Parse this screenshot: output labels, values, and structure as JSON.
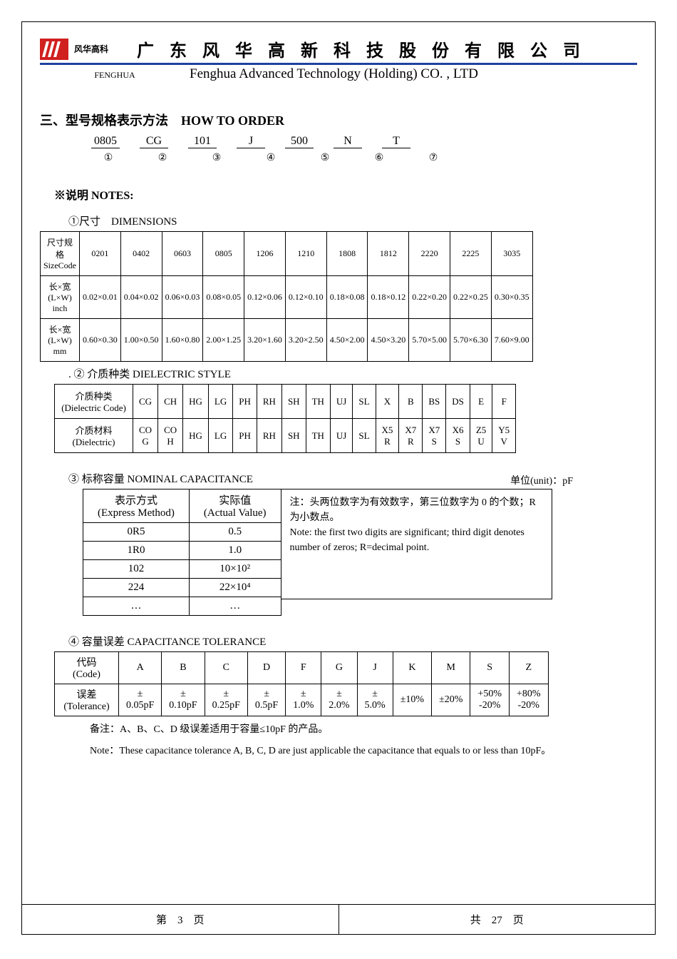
{
  "header": {
    "logo_text": "风华高科",
    "company_cn": "广 东 风 华 高 新 科 技 股 份 有 限 公 司",
    "sub_label": "FENGHUA",
    "company_en": "Fenghua Advanced Technology (Holding) CO. , LTD"
  },
  "section_order": {
    "title": "三、型号规格表示方法　HOW TO ORDER",
    "codes": [
      "0805",
      "CG",
      "101",
      "J",
      "500",
      "N",
      "T"
    ],
    "nums": [
      "①",
      "②",
      "③",
      "④",
      "⑤",
      "⑥",
      "⑦"
    ]
  },
  "notes_header": "※说明 NOTES:",
  "dim": {
    "label": "①尺寸　DIMENSIONS",
    "row_labels": [
      "尺寸规格\nSizeCode",
      "长×宽\n(L×W)\ninch",
      "长×宽\n(L×W)\nmm"
    ],
    "size_codes": [
      "0201",
      "0402",
      "0603",
      "0805",
      "1206",
      "1210",
      "1808",
      "1812",
      "2220",
      "2225",
      "3035"
    ],
    "inch": [
      "0.02×0.01",
      "0.04×0.02",
      "0.06×0.03",
      "0.08×0.05",
      "0.12×0.06",
      "0.12×0.10",
      "0.18×0.08",
      "0.18×0.12",
      "0.22×0.20",
      "0.22×0.25",
      "0.30×0.35"
    ],
    "mm": [
      "0.60×0.30",
      "1.00×0.50",
      "1.60×0.80",
      "2.00×1.25",
      "3.20×1.60",
      "3.20×2.50",
      "4.50×2.00",
      "4.50×3.20",
      "5.70×5.00",
      "5.70×6.30",
      "7.60×9.00"
    ]
  },
  "diel": {
    "label": ". ② 介质种类 DIELECTRIC STYLE",
    "row1_label": "介质种类\n(Dielectric Code)",
    "row2_label": "介质材料\n(Dielectric)",
    "codes": [
      "CG",
      "CH",
      "HG",
      "LG",
      "PH",
      "RH",
      "SH",
      "TH",
      "UJ",
      "SL",
      "X",
      "B",
      "BS",
      "DS",
      "E",
      "F"
    ],
    "mats": [
      "CO\nG",
      "CO\nH",
      "HG",
      "LG",
      "PH",
      "RH",
      "SH",
      "TH",
      "UJ",
      "SL",
      "X5\nR",
      "X7\nR",
      "X7\nS",
      "X6\nS",
      "Z5\nU",
      "Y5\nV"
    ]
  },
  "cap": {
    "label": "③ 标称容量 NOMINAL CAPACITANCE",
    "unit": "单位(unit)：pF",
    "hdr1": "表示方式\n(Express Method)",
    "hdr2": "实际值\n(Actual Value)",
    "rows": [
      [
        "0R5",
        "0.5"
      ],
      [
        "1R0",
        "1.0"
      ],
      [
        "102",
        "10×10²"
      ],
      [
        "224",
        "22×10⁴"
      ],
      [
        "…",
        "…"
      ]
    ],
    "note_cn": "注：头两位数字为有效数字，第三位数字为 0 的个数；R 为小数点。",
    "note_en": "Note: the first two digits are significant; third digit denotes number of zeros; R=decimal point."
  },
  "tol": {
    "label": "④ 容量误差 CAPACITANCE TOLERANCE",
    "row1_label": "代码 (Code)",
    "row2_label": "误差\n(Tolerance)",
    "codes": [
      "A",
      "B",
      "C",
      "D",
      "F",
      "G",
      "J",
      "K",
      "M",
      "S",
      "Z"
    ],
    "vals": [
      "±\n0.05pF",
      "±\n0.10pF",
      "±\n0.25pF",
      "±\n0.5pF",
      "±\n1.0%",
      "±\n2.0%",
      "±\n5.0%",
      "±10%",
      "±20%",
      "+50%\n-20%",
      "+80%\n-20%"
    ],
    "remark_cn": "备注：A、B、C、D 级误差适用于容量≤10pF 的产品。",
    "remark_en": "Note：These capacitance tolerance A, B, C, D are just applicable the capacitance that equals to or less than 10pF。"
  },
  "footer": {
    "page": "第　3　页",
    "total": "共　27　页"
  }
}
